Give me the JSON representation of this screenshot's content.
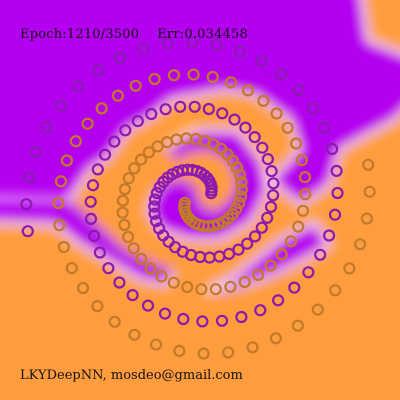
{
  "status": {
    "epoch_label": "Epoch:1210/3500",
    "error_label": "Err:0.034458"
  },
  "credit": "LKYDeepNN, mosdeo@gmail.com",
  "colors": {
    "class_a_region": "#b400f0",
    "class_b_region": "#ff9c3c",
    "boundary": "#ffffff",
    "class_a_points": "#8a1ab0",
    "class_b_points": "#c07a2a"
  },
  "chart_data": {
    "type": "scatter",
    "series": [
      {
        "color": "#8a1ab0",
        "turns": 2.5,
        "max_radius": 1.0
      },
      {
        "color": "#c07a2a",
        "turns": 2.5,
        "max_radius": 1.0
      }
    ],
    "grid": false,
    "legend": "none"
  }
}
